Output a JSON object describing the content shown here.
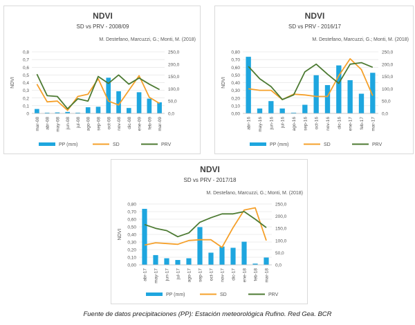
{
  "caption": "Fuente de datos precipitaciones (PP): Estación meteorológica Rufino. Red Gea. BCR",
  "colors": {
    "pp": "#1ea6df",
    "sd": "#f5a02a",
    "prv": "#4c7a32",
    "grid": "#d9d9d9",
    "text": "#555555"
  },
  "chart_data": [
    {
      "type": "bar",
      "title": "NDVI",
      "subtitle": "SD vs PRV - 2008/09",
      "credit": "M. Destefano, Marcuzzi, G.; Monti, M. (2018)",
      "ylabel": "NDVI",
      "categories": [
        "mar-08",
        "abr-08",
        "may-08",
        "jun-08",
        "jul-08",
        "ago-08",
        "sep-08",
        "oct-08",
        "nov-08",
        "dic-08",
        "ene-09",
        "feb-09",
        "mar-09"
      ],
      "ylim": [
        0,
        0.8
      ],
      "y_ticks": [
        "0",
        "0,1",
        "0,2",
        "0,3",
        "0,4",
        "0,5",
        "0,6",
        "0,7",
        "0,8"
      ],
      "y2lim": [
        0,
        250
      ],
      "y2_ticks": [
        "0,0",
        "50,0",
        "100,0",
        "150,0",
        "200,0",
        "250,0"
      ],
      "grid": true,
      "legend": "bottom",
      "series": [
        {
          "name": "PP (mm)",
          "kind": "bar",
          "axis": "right",
          "values": [
            18,
            3,
            4,
            6,
            3,
            25,
            27,
            145,
            90,
            22,
            86,
            60,
            45
          ]
        },
        {
          "name": "SD",
          "kind": "line",
          "axis": "left",
          "values": [
            0.38,
            0.15,
            0.16,
            0.04,
            0.22,
            0.25,
            0.45,
            0.16,
            0.11,
            0.3,
            0.49,
            0.21,
            0.13
          ]
        },
        {
          "name": "PRV",
          "kind": "line",
          "axis": "left",
          "values": [
            0.51,
            0.23,
            0.22,
            0.06,
            0.19,
            0.16,
            0.48,
            0.39,
            0.5,
            0.38,
            0.46,
            0.38,
            0.31
          ]
        }
      ]
    },
    {
      "type": "bar",
      "title": "NDVI",
      "subtitle": "SD vs PRV - 2016/17",
      "credit": "M. Destefano, Marcuzzi, G.; Monti, M. (2018)",
      "ylabel": "NDVI",
      "categories": [
        "abr-16",
        "may-16",
        "jun-16",
        "jul-16",
        "ago-16",
        "sep-16",
        "oct-16",
        "nov-16",
        "dic-16",
        "ene-17",
        "feb-17",
        "mar-17"
      ],
      "ylim": [
        0,
        0.8
      ],
      "y_ticks": [
        "0,00",
        "0,10",
        "0,20",
        "0,30",
        "0,40",
        "0,50",
        "0,60",
        "0,70",
        "0,80"
      ],
      "y2lim": [
        0,
        250
      ],
      "y2_ticks": [
        "0,0",
        "50,0",
        "100,0",
        "150,0",
        "200,0",
        "250,0"
      ],
      "grid": true,
      "legend": "bottom",
      "series": [
        {
          "name": "PP (mm)",
          "kind": "bar",
          "axis": "right",
          "values": [
            230,
            20,
            50,
            20,
            3,
            35,
            155,
            115,
            195,
            135,
            80,
            165
          ]
        },
        {
          "name": "SD",
          "kind": "line",
          "axis": "left",
          "values": [
            0.32,
            0.3,
            0.3,
            0.18,
            0.25,
            0.24,
            0.22,
            0.22,
            0.49,
            0.71,
            0.57,
            0.23
          ]
        },
        {
          "name": "PRV",
          "kind": "line",
          "axis": "left",
          "values": [
            0.61,
            0.45,
            0.35,
            0.18,
            0.24,
            0.54,
            0.64,
            0.51,
            0.39,
            0.64,
            0.66,
            0.6
          ]
        }
      ]
    },
    {
      "type": "bar",
      "title": "NDVI",
      "subtitle": "SD vs PRV - 2017/18",
      "credit": "M. Destefano, Marcuzzi, G.; Monti, M. (2018)",
      "ylabel": "NDVI",
      "categories": [
        "abr-17",
        "may-17",
        "jun-17",
        "jul-17",
        "ago-17",
        "sep-17",
        "oct-17",
        "nov-17",
        "dic-17",
        "ene-18",
        "feb-18",
        "mar-18"
      ],
      "ylim": [
        0,
        0.8
      ],
      "y_ticks": [
        "0,00",
        "0,10",
        "0,20",
        "0,30",
        "0,40",
        "0,50",
        "0,60",
        "0,70",
        "0,80"
      ],
      "y2lim": [
        0,
        250
      ],
      "y2_ticks": [
        "0,0",
        "50,0",
        "100,0",
        "150,0",
        "200,0",
        "250,0"
      ],
      "grid": true,
      "legend": "bottom",
      "series": [
        {
          "name": "PP (mm)",
          "kind": "bar",
          "axis": "right",
          "values": [
            230,
            40,
            27,
            20,
            27,
            155,
            50,
            75,
            70,
            95,
            5,
            30
          ]
        },
        {
          "name": "SD",
          "kind": "line",
          "axis": "left",
          "values": [
            0.26,
            0.29,
            0.28,
            0.27,
            0.32,
            0.33,
            0.33,
            0.23,
            0.49,
            0.72,
            0.75,
            0.32
          ]
        },
        {
          "name": "PRV",
          "kind": "line",
          "axis": "left",
          "values": [
            0.53,
            0.48,
            0.45,
            0.37,
            0.42,
            0.56,
            0.62,
            0.67,
            0.67,
            0.7,
            0.6,
            0.49
          ]
        }
      ]
    }
  ]
}
